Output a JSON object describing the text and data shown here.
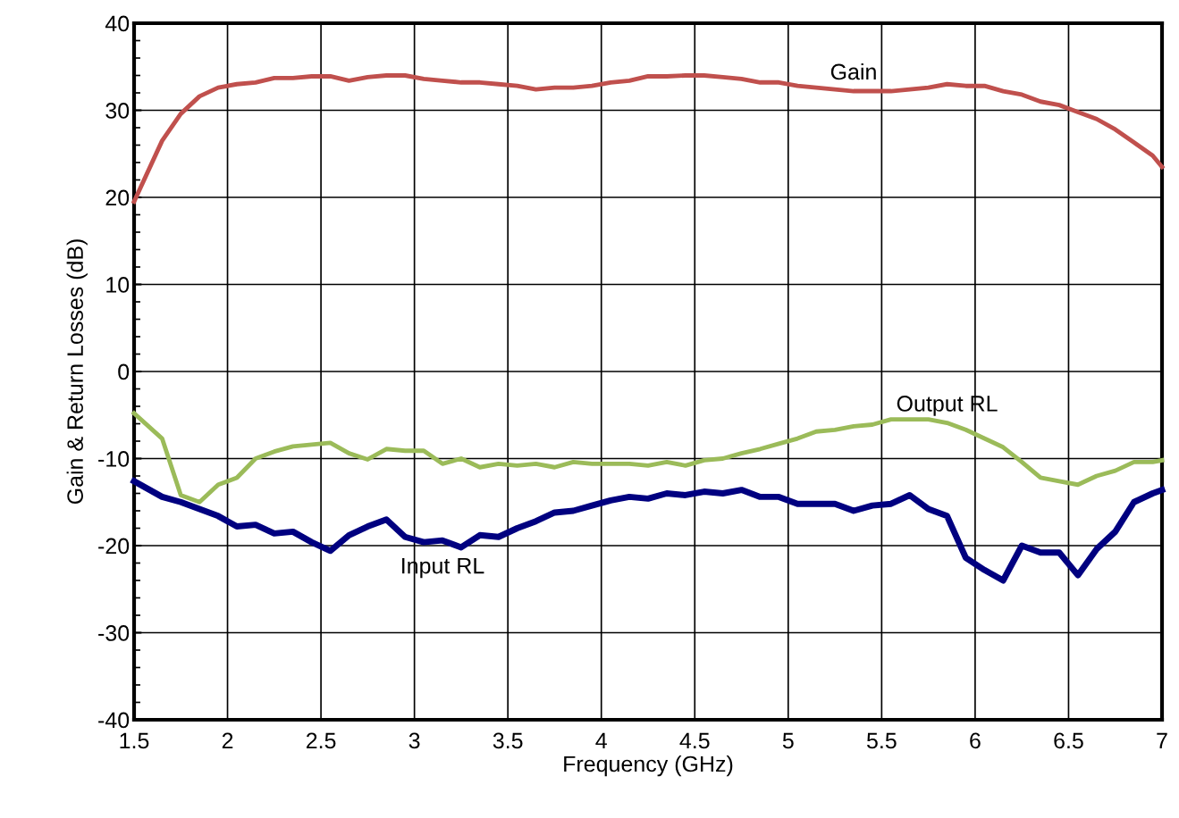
{
  "chart_data": {
    "type": "line",
    "xlabel": "Frequency (GHz)",
    "ylabel": "Gain & Return Losses (dB)",
    "x": [
      1.5,
      1.65,
      1.75,
      1.85,
      1.95,
      2.05,
      2.15,
      2.25,
      2.35,
      2.45,
      2.55,
      2.65,
      2.75,
      2.85,
      2.95,
      3.05,
      3.15,
      3.25,
      3.35,
      3.45,
      3.55,
      3.65,
      3.75,
      3.85,
      3.95,
      4.05,
      4.15,
      4.25,
      4.35,
      4.45,
      4.55,
      4.65,
      4.75,
      4.85,
      4.95,
      5.05,
      5.15,
      5.25,
      5.35,
      5.45,
      5.55,
      5.65,
      5.75,
      5.85,
      5.95,
      6.05,
      6.15,
      6.25,
      6.35,
      6.45,
      6.55,
      6.65,
      6.75,
      6.85,
      6.95,
      7.0
    ],
    "series": [
      {
        "name": "Gain",
        "color": "#c0504d",
        "values": [
          19.5,
          26.5,
          29.6,
          31.6,
          32.6,
          33.0,
          33.2,
          33.7,
          33.7,
          33.9,
          33.9,
          33.4,
          33.8,
          34.0,
          34.0,
          33.6,
          33.4,
          33.2,
          33.2,
          33.0,
          32.8,
          32.4,
          32.6,
          32.6,
          32.8,
          33.2,
          33.4,
          33.9,
          33.9,
          34.0,
          34.0,
          33.8,
          33.6,
          33.2,
          33.2,
          32.8,
          32.6,
          32.4,
          32.2,
          32.2,
          32.2,
          32.4,
          32.6,
          33.0,
          32.8,
          32.8,
          32.2,
          31.8,
          31.0,
          30.6,
          29.8,
          29.0,
          27.8,
          26.3,
          24.8,
          23.5
        ]
      },
      {
        "name": "Output RL",
        "color": "#9bbb59",
        "values": [
          -4.8,
          -7.7,
          -14.2,
          -15.0,
          -13.0,
          -12.2,
          -10.0,
          -9.2,
          -8.6,
          -8.4,
          -8.2,
          -9.4,
          -10.1,
          -8.9,
          -9.1,
          -9.1,
          -10.6,
          -10.0,
          -11.0,
          -10.6,
          -10.8,
          -10.6,
          -11.0,
          -10.4,
          -10.6,
          -10.6,
          -10.6,
          -10.8,
          -10.4,
          -10.8,
          -10.2,
          -10.0,
          -9.4,
          -8.9,
          -8.3,
          -7.7,
          -6.9,
          -6.7,
          -6.3,
          -6.1,
          -5.5,
          -5.5,
          -5.5,
          -5.9,
          -6.7,
          -7.7,
          -8.7,
          -10.4,
          -12.2,
          -12.6,
          -13.0,
          -12.0,
          -11.4,
          -10.4,
          -10.4,
          -10.2
        ]
      },
      {
        "name": "Input RL",
        "color": "#000080",
        "values": [
          -12.6,
          -14.4,
          -15.0,
          -15.8,
          -16.6,
          -17.8,
          -17.6,
          -18.6,
          -18.4,
          -19.6,
          -20.6,
          -18.8,
          -17.8,
          -17.0,
          -19.0,
          -19.6,
          -19.4,
          -20.2,
          -18.8,
          -19.0,
          -18.0,
          -17.2,
          -16.2,
          -16.0,
          -15.4,
          -14.8,
          -14.4,
          -14.6,
          -14.0,
          -14.2,
          -13.8,
          -14.0,
          -13.6,
          -14.4,
          -14.4,
          -15.2,
          -15.2,
          -15.2,
          -16.0,
          -15.4,
          -15.2,
          -14.2,
          -15.8,
          -16.6,
          -21.4,
          -22.8,
          -24.0,
          -20.0,
          -20.8,
          -20.8,
          -23.4,
          -20.4,
          -18.4,
          -15.0,
          -14.0,
          -13.6
        ]
      }
    ],
    "xlim": [
      1.5,
      7
    ],
    "xticks": [
      1.5,
      2,
      2.5,
      3,
      3.5,
      4,
      4.5,
      5,
      5.5,
      6,
      6.5,
      7
    ],
    "ylim": [
      -40,
      40
    ],
    "yticks": [
      -40,
      -30,
      -20,
      -10,
      0,
      10,
      20,
      30,
      40
    ],
    "grid": true,
    "legend": false,
    "marker": "none",
    "line_style": "solid"
  }
}
